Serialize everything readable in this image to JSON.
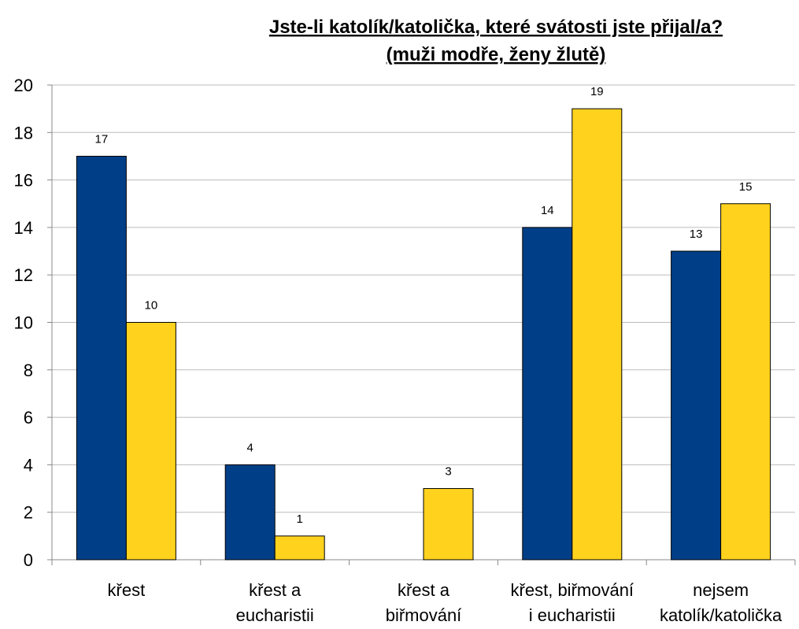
{
  "chart_data": {
    "type": "bar",
    "title_lines": [
      "Jste-li katolík/katolička, které svátosti jste přijal/a?",
      "(muži modře, ženy žlutě)"
    ],
    "categories": [
      [
        "křest"
      ],
      [
        "křest a",
        "eucharistii"
      ],
      [
        "křest a",
        "biřmování"
      ],
      [
        "křest, biřmování",
        "i eucharistii"
      ],
      [
        "nejsem",
        "katolík/katolička"
      ]
    ],
    "series": [
      {
        "color": "#003F87",
        "values": [
          17,
          4,
          0,
          14,
          13
        ]
      },
      {
        "color": "#FFD21E",
        "values": [
          10,
          1,
          3,
          19,
          15
        ]
      }
    ],
    "ylim": [
      0,
      20
    ],
    "yticks": [
      0,
      2,
      4,
      6,
      8,
      10,
      12,
      14,
      16,
      18,
      20
    ],
    "grid": true,
    "legend": "none",
    "grid_color": "#BBBBBB"
  }
}
